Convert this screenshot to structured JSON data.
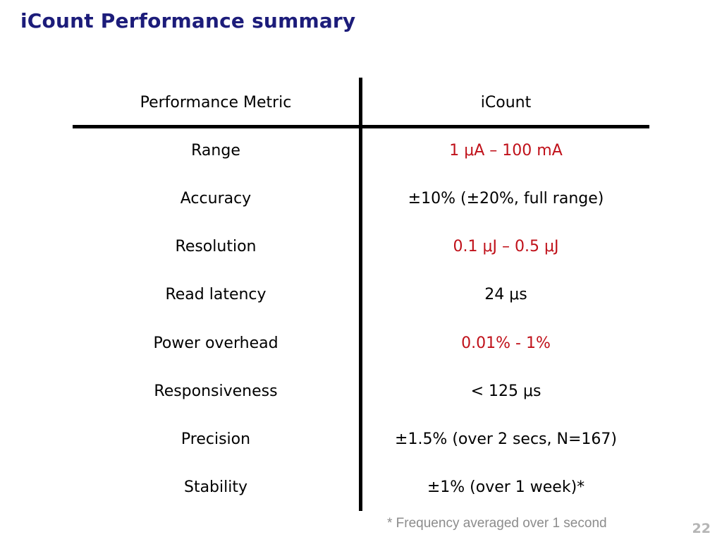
{
  "slide": {
    "title": "iCount Performance summary",
    "page_number": "22",
    "footnote": "* Frequency averaged over 1 second"
  },
  "table": {
    "headers": [
      "Performance Metric",
      "iCount"
    ],
    "rows": [
      {
        "metric": "Range",
        "value": "1 μA – 100 mA",
        "highlight": true
      },
      {
        "metric": "Accuracy",
        "value": "±10% (±20%, full range)",
        "highlight": false
      },
      {
        "metric": "Resolution",
        "value": "0.1 μJ – 0.5 μJ",
        "highlight": true
      },
      {
        "metric": "Read latency",
        "value": "24 μs",
        "highlight": false
      },
      {
        "metric": "Power overhead",
        "value": "0.01% - 1%",
        "highlight": true
      },
      {
        "metric": "Responsiveness",
        "value": "< 125 μs",
        "highlight": false
      },
      {
        "metric": "Precision",
        "value": "±1.5% (over 2 secs, N=167)",
        "highlight": false
      },
      {
        "metric": "Stability",
        "value": "±1% (over 1 week)*",
        "highlight": false
      }
    ]
  },
  "colors": {
    "title": "#1c1c7a",
    "highlight": "#c0111a",
    "footnote": "#8c8c8c",
    "page_number": "#b5b5b5"
  }
}
